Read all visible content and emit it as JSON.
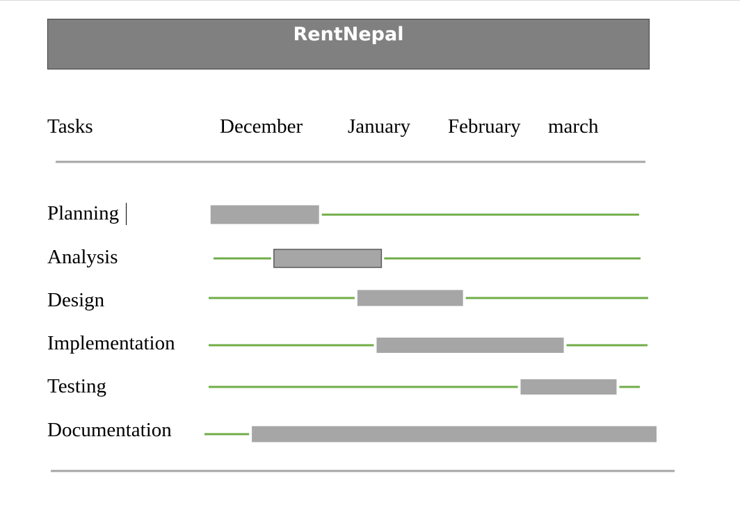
{
  "colors": {
    "title_bar": "#808080",
    "bar": "#a6a6a6",
    "bar_outline": "#595959",
    "track": "#70ad47",
    "rule": "#a6a6a6"
  },
  "chart_data": {
    "type": "bar",
    "subtype": "gantt",
    "title": "RentNepal",
    "header_label": "Tasks",
    "months": [
      "December",
      "January",
      "February",
      "march"
    ],
    "tasks": [
      {
        "name": "Planning",
        "start": 0.02,
        "end": 1.15
      },
      {
        "name": "Analysis",
        "start": 0.68,
        "end": 1.8
      },
      {
        "name": "Design",
        "start": 1.55,
        "end": 2.65
      },
      {
        "name": "Implementation",
        "start": 1.75,
        "end": 3.7
      },
      {
        "name": "Testing",
        "start": 3.25,
        "end": 4.25
      },
      {
        "name": "Documentation",
        "start": 0.45,
        "end": 4.7
      }
    ],
    "x_range": [
      0,
      4.6
    ],
    "units": "months from start of December",
    "legend": "none",
    "grid": false
  }
}
